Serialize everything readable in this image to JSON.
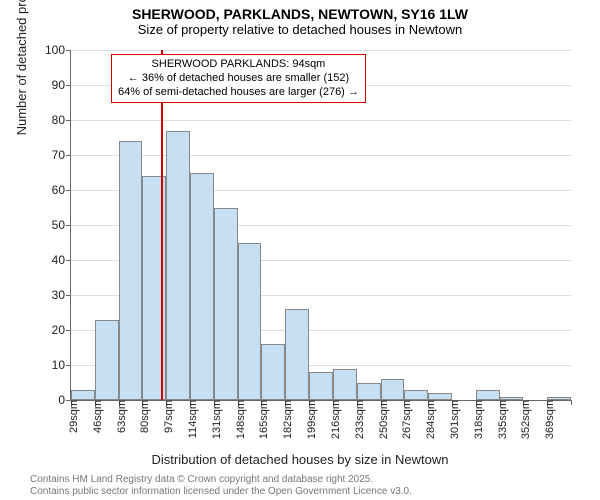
{
  "title": "SHERWOOD, PARKLANDS, NEWTOWN, SY16 1LW",
  "subtitle": "Size of property relative to detached houses in Newtown",
  "title_fontsize": 14,
  "subtitle_fontsize": 13,
  "ylabel": "Number of detached properties",
  "xlabel": "Distribution of detached houses by size in Newtown",
  "chart": {
    "type": "histogram",
    "bar_fill": "#c7dff2",
    "bar_border": "#888888",
    "background": "#ffffff",
    "grid_color": "#dddddd",
    "ylim": [
      0,
      100
    ],
    "ytick_step": 10,
    "x_start": 29,
    "x_step": 17,
    "x_n": 21,
    "values": [
      3,
      23,
      74,
      64,
      77,
      65,
      55,
      45,
      16,
      26,
      8,
      9,
      5,
      6,
      3,
      2,
      0,
      3,
      1,
      0,
      1
    ],
    "marker": {
      "x_value": 94,
      "color": "#d40000",
      "width": 2
    }
  },
  "annotation": {
    "line1": "SHERWOOD PARKLANDS: 94sqm",
    "line2": "← 36% of detached houses are smaller (152)",
    "line3": "64% of semi-detached houses are larger (276) →",
    "border_color": "#d40000",
    "fontsize": 11
  },
  "footer": {
    "line1": "Contains HM Land Registry data © Crown copyright and database right 2025.",
    "line2": "Contains public sector information licensed under the Open Government Licence v3.0.",
    "color": "#777777",
    "fontsize": 10
  }
}
